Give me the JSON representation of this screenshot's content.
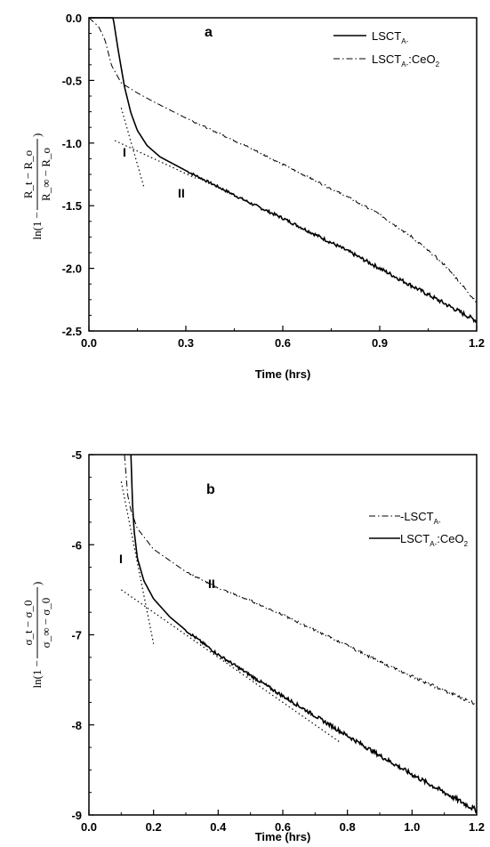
{
  "chart_data": [
    {
      "type": "line",
      "panel_label": "a",
      "xlabel": "Time (hrs)",
      "ylabel": "ln(1 − (R_t − R_o)/(R_∞ − R_o))",
      "ylabel_parts": {
        "prefix": "ln(1 −",
        "num": "R_t − R_o",
        "den": "R_∞ − R_o",
        "suffix": ")"
      },
      "xlim": [
        0,
        1.2
      ],
      "ylim": [
        -2.5,
        0
      ],
      "x_ticks": [
        "0.0",
        "0.3",
        "0.6",
        "0.9",
        "1.2"
      ],
      "y_ticks": [
        "0.0",
        "-0.5",
        "-1.0",
        "-1.5",
        "-2.0",
        "-2.5"
      ],
      "regions": [
        "I",
        "II"
      ],
      "series": [
        {
          "name": "LSCT_A-",
          "style": "solid",
          "x": [
            0,
            0.05,
            0.075,
            0.09,
            0.11,
            0.13,
            0.15,
            0.18,
            0.22,
            0.3,
            0.4,
            0.5,
            0.6,
            0.7,
            0.8,
            0.9,
            1.0,
            1.1,
            1.2
          ],
          "y": [
            0,
            0,
            0,
            -0.25,
            -0.55,
            -0.76,
            -0.9,
            -1.02,
            -1.11,
            -1.22,
            -1.35,
            -1.48,
            -1.6,
            -1.73,
            -1.86,
            -2.0,
            -2.14,
            -2.28,
            -2.42
          ]
        },
        {
          "name": "LSCT_A-:CeO_2",
          "style": "dashdot",
          "x": [
            0,
            0.03,
            0.05,
            0.07,
            0.1,
            0.15,
            0.2,
            0.3,
            0.4,
            0.5,
            0.6,
            0.7,
            0.8,
            0.9,
            1.0,
            1.1,
            1.2
          ],
          "y": [
            0,
            -0.07,
            -0.18,
            -0.38,
            -0.52,
            -0.6,
            -0.67,
            -0.8,
            -0.92,
            -1.04,
            -1.17,
            -1.3,
            -1.43,
            -1.57,
            -1.75,
            -1.97,
            -2.27
          ]
        }
      ],
      "fit_lines": [
        {
          "x": [
            0.1,
            0.17
          ],
          "y": [
            -0.72,
            -1.35
          ]
        },
        {
          "x": [
            0.08,
            0.33
          ],
          "y": [
            -0.98,
            -1.28
          ]
        }
      ]
    },
    {
      "type": "line",
      "panel_label": "b",
      "xlabel": "Time (hrs)",
      "ylabel": "ln(1 − (σ_t − σ_0)/(σ_∞ − σ_0))",
      "ylabel_parts": {
        "prefix": "ln(1 −",
        "num": "σ_t − σ_0",
        "den": "σ_∞ − σ_0",
        "suffix": ")"
      },
      "xlim": [
        0,
        1.2
      ],
      "ylim": [
        -9,
        -5
      ],
      "x_ticks": [
        "0.0",
        "0.2",
        "0.4",
        "0.6",
        "0.8",
        "1.0",
        "1.2"
      ],
      "y_ticks": [
        "-5",
        "-6",
        "-7",
        "-8",
        "-9"
      ],
      "regions": [
        "I",
        "II"
      ],
      "series": [
        {
          "name": "LSCT_A-",
          "style": "dashdot",
          "x": [
            0.11,
            0.12,
            0.13,
            0.15,
            0.2,
            0.3,
            0.4,
            0.5,
            0.6,
            0.7,
            0.8,
            0.9,
            1.0,
            1.1,
            1.2
          ],
          "y": [
            -5.0,
            -5.45,
            -5.62,
            -5.82,
            -6.05,
            -6.3,
            -6.48,
            -6.62,
            -6.78,
            -6.95,
            -7.12,
            -7.3,
            -7.46,
            -7.62,
            -7.77
          ]
        },
        {
          "name": "LSCT_A-:CeO_2",
          "style": "solid",
          "x": [
            0.13,
            0.135,
            0.14,
            0.15,
            0.17,
            0.2,
            0.25,
            0.3,
            0.4,
            0.5,
            0.6,
            0.7,
            0.8,
            0.9,
            1.0,
            1.1,
            1.2
          ],
          "y": [
            -5.0,
            -5.55,
            -5.85,
            -6.15,
            -6.4,
            -6.6,
            -6.8,
            -6.95,
            -7.22,
            -7.45,
            -7.68,
            -7.9,
            -8.12,
            -8.34,
            -8.55,
            -8.75,
            -8.95
          ]
        }
      ],
      "fit_lines": [
        {
          "x": [
            0.1,
            0.2
          ],
          "y": [
            -5.3,
            -7.1
          ]
        },
        {
          "x": [
            0.1,
            0.78
          ],
          "y": [
            -6.5,
            -8.2
          ]
        }
      ]
    }
  ]
}
